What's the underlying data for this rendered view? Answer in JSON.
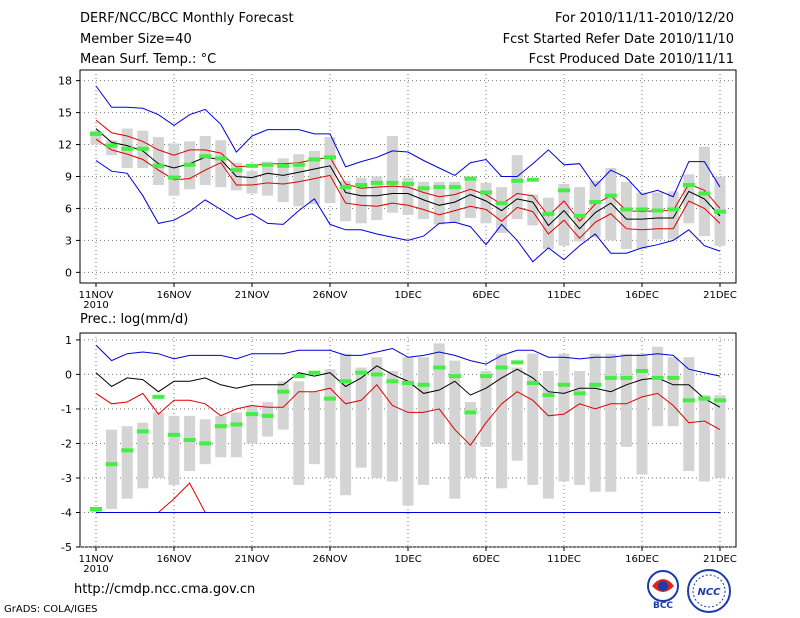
{
  "header": {
    "line1": "DERF/NCC/BCC Monthly Forecast",
    "line2": "Member Size=40",
    "line3": "Mean Surf. Temp.: °C",
    "right1": "For 2010/11/11-2010/12/20",
    "right2": "Fcst Started Refer Date 2010/11/10",
    "right3": "Fcst Produced Date 2010/11/11"
  },
  "footer": {
    "url": "http://cmdp.ncc.cma.gov.cn",
    "grads": "GrADS: COLA/IGES",
    "logo1_text": "BCC",
    "logo2_text": "NCC"
  },
  "colors": {
    "box": "#d4d4d4",
    "max": "#0000e0",
    "min": "#0000e0",
    "mean": "#000000",
    "upper": "#e00000",
    "green": "#44ee44"
  },
  "chart_data": [
    {
      "type": "line",
      "title": "Mean Surf. Temp.: °C",
      "days": 40,
      "xticks": [
        "11NOV",
        "16NOV",
        "21NOV",
        "26NOV",
        "1DEC",
        "6DEC",
        "11DEC",
        "16DEC",
        "21DEC"
      ],
      "xyear": "2010",
      "ylim": [
        -1,
        19
      ],
      "yticks": [
        0,
        3,
        6,
        9,
        12,
        15,
        18
      ],
      "series": [
        {
          "name": "max",
          "values": [
            17.5,
            15.5,
            15.5,
            15.4,
            14.8,
            13.8,
            14.8,
            15.3,
            13.9,
            11.3,
            12.8,
            13.4,
            13.4,
            13.4,
            13.0,
            13.0,
            9.9,
            10.4,
            10.8,
            11.4,
            11.3,
            10.5,
            9.8,
            9.1,
            10.3,
            10.6,
            9.0,
            9.0,
            10.2,
            11.5,
            10.1,
            10.2,
            8.1,
            9.6,
            8.9,
            7.3,
            7.7,
            7.1,
            10.4,
            10.4,
            8.0
          ]
        },
        {
          "name": "upper",
          "values": [
            14.3,
            13.1,
            12.8,
            12.3,
            11.5,
            11.0,
            11.5,
            11.5,
            11.2,
            9.9,
            10.0,
            10.2,
            10.2,
            10.3,
            10.6,
            10.8,
            8.3,
            7.9,
            8.0,
            8.1,
            8.0,
            7.5,
            7.1,
            7.3,
            7.8,
            7.3,
            6.4,
            7.4,
            7.2,
            5.3,
            6.7,
            4.8,
            6.4,
            7.2,
            5.8,
            5.7,
            5.8,
            5.8,
            8.3,
            7.7,
            6.0
          ]
        },
        {
          "name": "mean",
          "values": [
            13.5,
            12.2,
            11.9,
            11.4,
            10.2,
            9.8,
            10.2,
            10.8,
            10.6,
            9.0,
            8.9,
            9.3,
            9.1,
            9.4,
            9.7,
            10.0,
            7.5,
            7.2,
            7.2,
            7.4,
            7.4,
            6.8,
            6.3,
            6.6,
            7.3,
            6.7,
            5.8,
            6.9,
            6.6,
            4.4,
            5.8,
            4.1,
            5.6,
            6.5,
            5.0,
            5.0,
            5.1,
            5.1,
            7.6,
            6.9,
            5.3
          ]
        },
        {
          "name": "lower",
          "values": [
            12.5,
            11.5,
            11.1,
            10.6,
            9.6,
            8.7,
            8.8,
            9.6,
            10.3,
            8.2,
            8.2,
            8.4,
            8.3,
            8.5,
            8.8,
            9.1,
            6.5,
            6.3,
            6.2,
            6.5,
            6.3,
            5.9,
            5.4,
            5.8,
            6.2,
            5.9,
            4.8,
            6.1,
            5.7,
            3.6,
            4.9,
            3.2,
            4.7,
            5.5,
            4.1,
            4.0,
            4.1,
            4.1,
            6.7,
            6.0,
            4.6
          ]
        },
        {
          "name": "min",
          "values": [
            10.5,
            9.5,
            9.3,
            7.2,
            4.6,
            4.9,
            5.7,
            6.8,
            5.9,
            5.0,
            5.5,
            4.6,
            4.5,
            5.8,
            6.9,
            4.5,
            4.0,
            4.0,
            3.6,
            3.3,
            3.0,
            3.4,
            4.6,
            4.7,
            4.3,
            2.6,
            4.5,
            3.0,
            1.0,
            2.3,
            1.2,
            2.5,
            3.6,
            1.8,
            1.8,
            2.3,
            2.6,
            3.0,
            4.0,
            2.5,
            2.0
          ]
        }
      ],
      "boxes": {
        "low": [
          12.0,
          11.0,
          9.8,
          9.8,
          8.2,
          7.2,
          7.8,
          8.2,
          8.0,
          7.7,
          7.4,
          7.2,
          6.6,
          6.2,
          6.4,
          6.5,
          4.8,
          4.6,
          4.9,
          5.6,
          5.4,
          5.0,
          4.5,
          4.7,
          5.1,
          4.6,
          3.7,
          5.0,
          4.4,
          2.2,
          2.5,
          2.9,
          3.3,
          3.0,
          2.2,
          2.2,
          3.1,
          3.1,
          4.6,
          3.4,
          2.5
        ],
        "high": [
          13.3,
          12.4,
          13.5,
          13.3,
          12.7,
          12.1,
          12.3,
          12.8,
          12.4,
          10.3,
          9.5,
          10.4,
          10.7,
          11.1,
          11.4,
          12.7,
          8.6,
          8.9,
          9.0,
          12.8,
          8.9,
          8.5,
          8.5,
          8.5,
          9.0,
          8.4,
          8.0,
          11.0,
          7.3,
          7.0,
          8.3,
          8.0,
          8.6,
          9.8,
          8.5,
          7.5,
          7.5,
          7.6,
          9.2,
          11.8,
          9.0
        ]
      },
      "observed": [
        13.0,
        11.9,
        11.6,
        11.6,
        10.0,
        8.9,
        10.1,
        10.9,
        10.7,
        9.6,
        10.0,
        10.1,
        10.0,
        10.1,
        10.6,
        10.8,
        8.0,
        8.2,
        8.4,
        8.4,
        8.3,
        7.9,
        8.0,
        8.0,
        8.8,
        7.5,
        6.5,
        8.6,
        8.7,
        5.5,
        7.7,
        5.3,
        6.6,
        7.2,
        5.9,
        5.9,
        5.8,
        5.9,
        8.2,
        7.4,
        5.7
      ]
    },
    {
      "type": "line",
      "title": "Prec.: log(mm/d)",
      "days": 40,
      "xticks": [
        "11NOV",
        "16NOV",
        "21NOV",
        "26NOV",
        "1DEC",
        "6DEC",
        "11DEC",
        "16DEC",
        "21DEC"
      ],
      "xyear": "2010",
      "ylim": [
        -5,
        1.2
      ],
      "yticks": [
        -5,
        -4,
        -3,
        -2,
        -1,
        0,
        1
      ],
      "series": [
        {
          "name": "max",
          "values": [
            0.85,
            0.4,
            0.6,
            0.65,
            0.6,
            0.45,
            0.55,
            0.55,
            0.55,
            0.45,
            0.6,
            0.6,
            0.6,
            0.7,
            0.7,
            0.7,
            0.55,
            0.55,
            0.65,
            0.75,
            0.5,
            0.55,
            0.65,
            0.55,
            0.4,
            0.3,
            0.55,
            0.7,
            0.7,
            0.5,
            0.5,
            0.45,
            0.5,
            0.5,
            0.55,
            0.55,
            0.6,
            0.55,
            0.15,
            0.05,
            -0.05
          ]
        },
        {
          "name": "mean",
          "values": [
            0.05,
            -0.35,
            -0.1,
            -0.15,
            -0.5,
            -0.2,
            -0.2,
            -0.1,
            -0.3,
            -0.4,
            -0.3,
            -0.3,
            -0.3,
            0.05,
            -0.05,
            0.05,
            -0.35,
            -0.1,
            0.25,
            0.0,
            -0.2,
            -0.55,
            -0.45,
            -0.2,
            -0.6,
            -0.4,
            -0.1,
            0.15,
            -0.1,
            -0.5,
            -0.55,
            -0.4,
            -0.4,
            -0.5,
            -0.3,
            -0.15,
            -0.1,
            -0.3,
            -0.3,
            -0.7,
            -0.95
          ]
        },
        {
          "name": "upper",
          "values": [
            -0.55,
            -0.85,
            -0.8,
            -0.55,
            -1.15,
            -0.75,
            -0.75,
            -0.85,
            -1.2,
            -1.0,
            -0.9,
            -0.95,
            -0.95,
            -0.5,
            -0.5,
            -0.4,
            -0.85,
            -0.75,
            -0.3,
            -0.9,
            -1.1,
            -1.1,
            -1.0,
            -1.6,
            -2.05,
            -1.4,
            -0.85,
            -0.5,
            -0.75,
            -1.2,
            -1.15,
            -0.85,
            -1.0,
            -0.85,
            -0.85,
            -0.65,
            -0.55,
            -0.9,
            -1.4,
            -1.35,
            -1.6
          ]
        },
        {
          "name": "lower",
          "values": [
            -4.0,
            -4.0,
            -4.0,
            -4.0,
            -4.0,
            -3.6,
            -3.15,
            -4.0,
            -4.0,
            -4.0,
            -4.0,
            -4.0,
            -4.0,
            -4.0,
            -4.0,
            -4.0,
            -4.0,
            -4.0,
            -4.0,
            -4.0,
            -4.0,
            -4.0,
            -4.0,
            -4.0,
            -4.0,
            -4.0,
            -4.0,
            -4.0,
            -4.0,
            -4.0,
            -4.0,
            -4.0,
            -4.0,
            -4.0,
            -4.0,
            -4.0,
            -4.0,
            -4.0,
            -4.0,
            -4.0,
            -4.0
          ]
        },
        {
          "name": "min",
          "values": [
            -4.0,
            -4.0,
            -4.0,
            -4.0,
            -4.0,
            -4.0,
            -4.0,
            -4.0,
            -4.0,
            -4.0,
            -4.0,
            -4.0,
            -4.0,
            -4.0,
            -4.0,
            -4.0,
            -4.0,
            -4.0,
            -4.0,
            -4.0,
            -4.0,
            -4.0,
            -4.0,
            -4.0,
            -4.0,
            -4.0,
            -4.0,
            -4.0,
            -4.0,
            -4.0,
            -4.0,
            -4.0,
            -4.0,
            -4.0,
            -4.0,
            -4.0,
            -4.0,
            -4.0,
            -4.0,
            -4.0,
            -4.0
          ]
        }
      ],
      "boxes": {
        "low": [
          -4.0,
          -3.9,
          -3.6,
          -3.3,
          -3.0,
          -3.2,
          -2.8,
          -2.6,
          -2.4,
          -2.4,
          -2.0,
          -1.8,
          -1.6,
          -3.2,
          -2.6,
          -3.0,
          -3.5,
          -2.7,
          -3.0,
          -3.1,
          -3.8,
          -3.2,
          -2.0,
          -3.6,
          -3.0,
          -2.1,
          -3.3,
          -2.5,
          -3.2,
          -3.6,
          -3.1,
          -3.2,
          -3.4,
          -3.4,
          -2.1,
          -2.9,
          -1.5,
          -1.5,
          -2.8,
          -3.1,
          -3.0
        ],
        "high": [
          -3.9,
          -1.6,
          -1.5,
          -1.4,
          -1.1,
          -1.2,
          -1.2,
          -1.3,
          -1.2,
          -1.1,
          -0.9,
          -0.8,
          -0.2,
          -0.2,
          -0.5,
          0.15,
          0.6,
          0.2,
          0.5,
          0.1,
          0.5,
          0.5,
          0.9,
          0.4,
          -0.8,
          0.1,
          0.6,
          0.2,
          0.6,
          0.1,
          0.6,
          0.1,
          0.6,
          0.6,
          0.6,
          0.6,
          0.8,
          0.5,
          0.5,
          -0.6,
          -0.6
        ]
      },
      "observed": [
        -3.9,
        -2.6,
        -2.2,
        -1.65,
        -0.65,
        -1.75,
        -1.9,
        -2.0,
        -1.5,
        -1.45,
        -1.15,
        -1.2,
        -0.5,
        -0.05,
        0.05,
        -0.7,
        -0.2,
        0.05,
        0.0,
        -0.2,
        -0.25,
        -0.3,
        0.2,
        -0.05,
        -1.1,
        -0.05,
        0.2,
        0.35,
        -0.25,
        -0.6,
        -0.3,
        -0.55,
        -0.3,
        -0.1,
        -0.1,
        0.1,
        -0.1,
        -0.1,
        -0.75,
        -0.7,
        -0.75
      ]
    }
  ]
}
